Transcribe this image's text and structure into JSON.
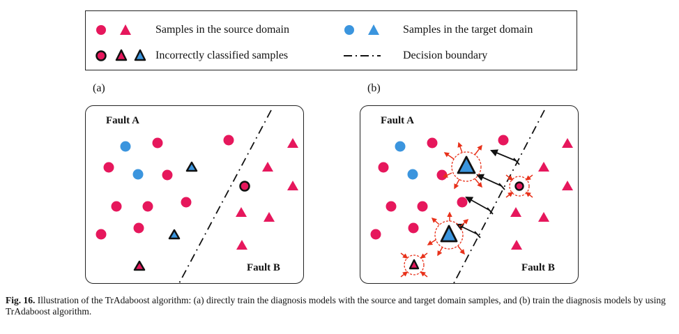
{
  "legend": {
    "source": "Samples in the source domain",
    "target": "Samples in the target domain",
    "incorrect": "Incorrectly classified samples",
    "boundary": "Decision boundary"
  },
  "panels": {
    "a": {
      "label": "(a)",
      "fault_a": "Fault A",
      "fault_b": "Fault B"
    },
    "b": {
      "label": "(b)",
      "fault_a": "Fault A",
      "fault_b": "Fault B"
    }
  },
  "caption": {
    "fig": "Fig. 16.",
    "text": "Illustration of the TrAdaboost algorithm: (a) directly train the diagnosis models with the source and target domain samples, and (b) train the diagnosis models by using TrAdaboost algorithm."
  },
  "colors": {
    "source": "#e6175c",
    "target": "#3b95de",
    "outline": "#111111",
    "weight_arrow": "#e8311a"
  }
}
